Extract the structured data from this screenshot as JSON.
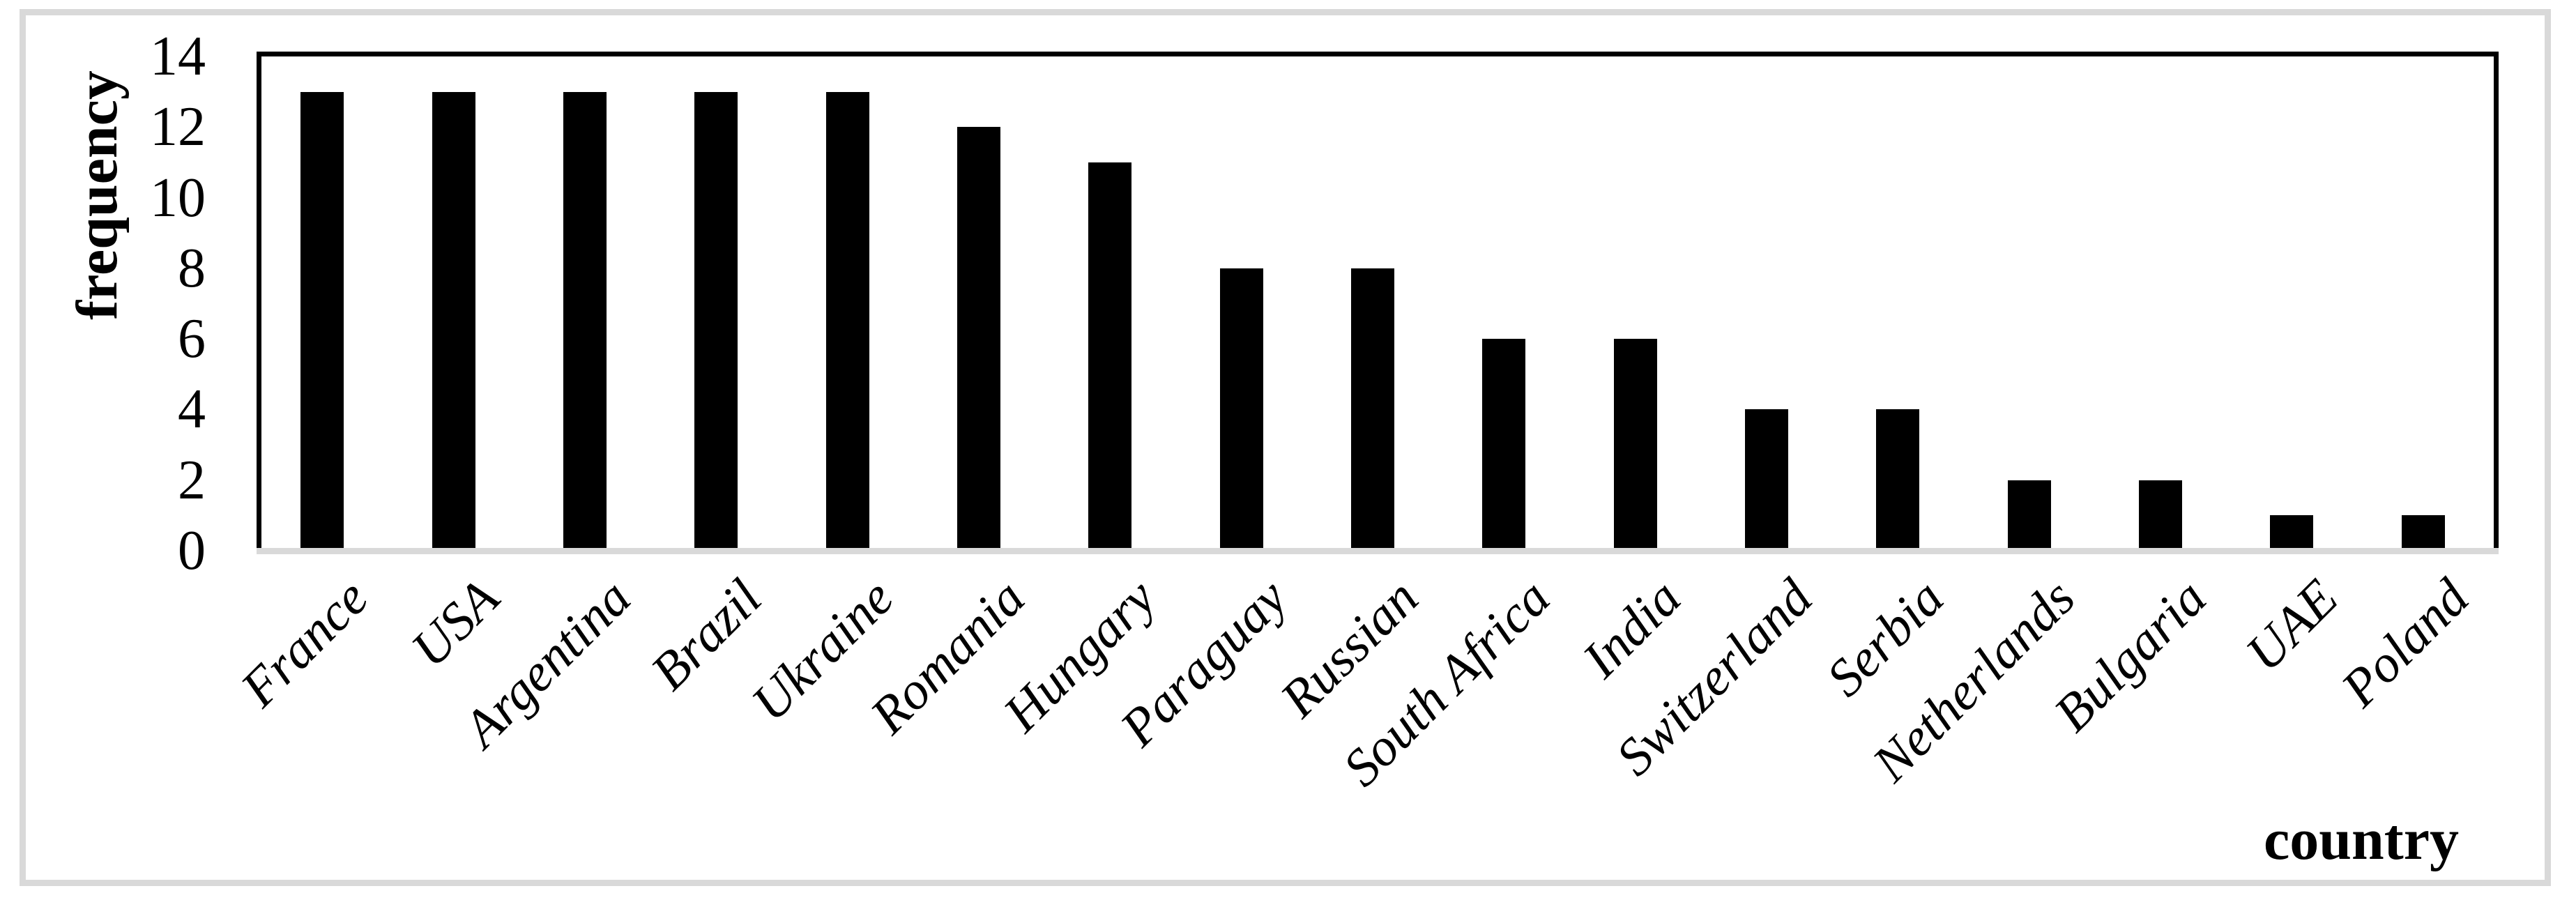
{
  "chart_data": {
    "type": "bar",
    "title": "",
    "xlabel": "country",
    "ylabel": "frequency",
    "categories": [
      "France",
      "USA",
      "Argentina",
      "Brazil",
      "Ukraine",
      "Romania",
      "Hungary",
      "Paraguay",
      "Russian",
      "South Africa",
      "India",
      "Switzerland",
      "Serbia",
      "Netherlands",
      "Bulgaria",
      "UAE",
      "Poland"
    ],
    "values": [
      13,
      13,
      13,
      13,
      13,
      12,
      11,
      8,
      8,
      6,
      6,
      4,
      4,
      2,
      2,
      1,
      1
    ],
    "ylim": [
      0,
      14
    ],
    "yticks": [
      0,
      2,
      4,
      6,
      8,
      10,
      12,
      14
    ],
    "grid": false,
    "legend": "none",
    "bar_color": "#000000",
    "plot_border_color": "#000000",
    "axis_line_color": "#d9d9d9",
    "frame_color": "#d9d9d9",
    "background_color": "#ffffff"
  }
}
